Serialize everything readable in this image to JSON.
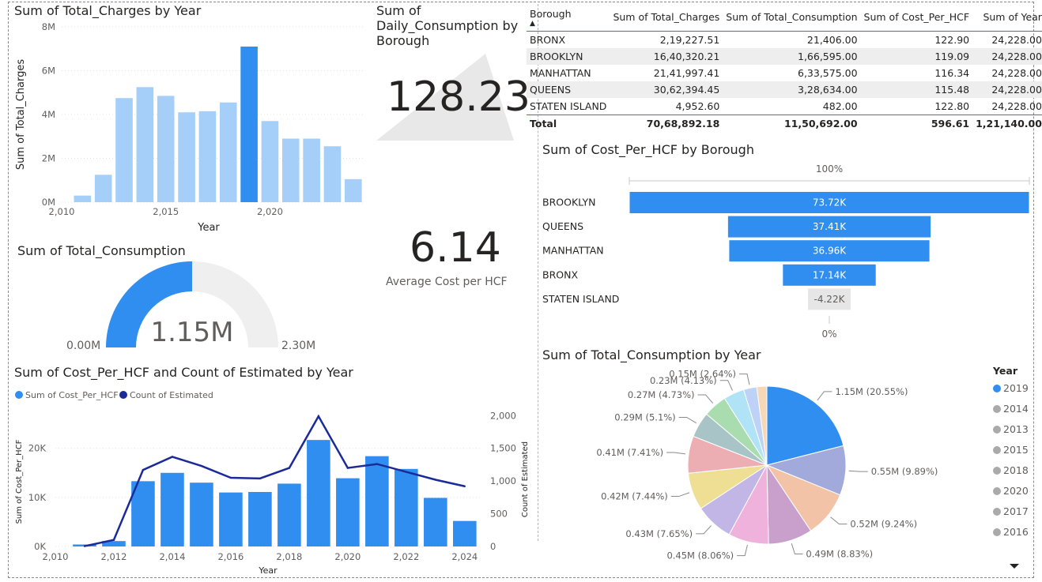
{
  "colors": {
    "accent": "#2f8ef0",
    "light": "#a5cff8",
    "line": "#1b2a99",
    "gaugeBg": "#efefef",
    "funnelNeg": "#e6e6e6"
  },
  "charges_chart": {
    "title": "Sum of Total_Charges by Year",
    "chart_data": {
      "type": "bar",
      "title": "Sum of Total_Charges by Year",
      "xlabel": "Year",
      "ylabel": "Sum of Total_Charges",
      "categories": [
        2011,
        2012,
        2013,
        2014,
        2015,
        2016,
        2017,
        2018,
        2019,
        2020,
        2021,
        2022,
        2023,
        2024
      ],
      "values": [
        0.3,
        1.25,
        4.75,
        5.25,
        4.85,
        4.1,
        4.15,
        4.55,
        7.1,
        3.7,
        2.9,
        2.9,
        2.55,
        1.05
      ],
      "unit": "M",
      "highlight": 2019,
      "ylim": [
        0,
        8
      ],
      "yticks": [
        "0M",
        "2M",
        "4M",
        "6M",
        "8M"
      ],
      "xticks": [
        "2,010",
        "2,015",
        "2,020"
      ]
    }
  },
  "daily_card": {
    "title": "Sum of Daily_Consumption by Borough",
    "title_lines": [
      "Sum of",
      "Daily_Consumption by",
      "Borough"
    ],
    "value": "128.23"
  },
  "avg_card": {
    "value": "6.14",
    "label": "Average Cost per HCF"
  },
  "table": {
    "headers": [
      "Borough",
      "Sum of Total_Charges",
      "Sum of Total_Consumption",
      "Sum of Cost_Per_HCF",
      "Sum of Year"
    ],
    "sort_glyph": "▲",
    "rows": [
      [
        "BRONX",
        "2,19,227.51",
        "21,406.00",
        "122.90",
        "24,228.00"
      ],
      [
        "BROOKLYN",
        "16,40,320.21",
        "1,66,595.00",
        "119.09",
        "24,228.00"
      ],
      [
        "MANHATTAN",
        "21,41,997.41",
        "6,33,575.00",
        "116.34",
        "24,228.00"
      ],
      [
        "QUEENS",
        "30,62,394.45",
        "3,28,634.00",
        "115.48",
        "24,228.00"
      ],
      [
        "STATEN ISLAND",
        "4,952.60",
        "482.00",
        "122.80",
        "24,228.00"
      ]
    ],
    "total": [
      "Total",
      "70,68,892.18",
      "11,50,692.00",
      "596.61",
      "1,21,140.00"
    ]
  },
  "gauge": {
    "title": "Sum of Total_Consumption",
    "value": "1.15M",
    "min": "0.00M",
    "max": "2.30M",
    "fraction": 0.5
  },
  "funnel": {
    "title": "Sum of Cost_Per_HCF by Borough",
    "top_label": "100%",
    "bottom_label": "0%",
    "chart_data": {
      "type": "bar",
      "categories": [
        "BROOKLYN",
        "QUEENS",
        "MANHATTAN",
        "BRONX",
        "STATEN ISLAND"
      ],
      "values": [
        73.72,
        37.41,
        36.96,
        17.14,
        -4.22
      ],
      "labels": [
        "73.72K",
        "37.41K",
        "36.96K",
        "17.14K",
        "-4.22K"
      ],
      "unit": "K"
    }
  },
  "combo": {
    "title": "Sum of Cost_Per_HCF and Count of Estimated by Year",
    "legend": [
      "Sum of Cost_Per_HCF",
      "Count of Estimated"
    ],
    "chart_data": {
      "type": "bar",
      "xlabel": "Year",
      "ylabel": "Sum of Cost_Per_HCF",
      "y2label": "Count of Estimated",
      "categories": [
        2011,
        2012,
        2013,
        2014,
        2015,
        2016,
        2017,
        2018,
        2019,
        2020,
        2021,
        2022,
        2023,
        2024
      ],
      "series": [
        {
          "name": "Sum of Cost_Per_HCF",
          "type": "bar",
          "values": [
            400,
            1100,
            13300,
            15000,
            13000,
            11000,
            11100,
            12800,
            21700,
            13900,
            18400,
            15800,
            9900,
            5200
          ]
        },
        {
          "name": "Count of Estimated",
          "type": "line",
          "values": [
            5,
            100,
            1170,
            1370,
            1230,
            1050,
            1040,
            1200,
            1990,
            1200,
            1260,
            1140,
            1020,
            920
          ]
        }
      ],
      "ylim": [
        0,
        28000
      ],
      "y2lim": [
        0,
        2100
      ],
      "yticks": [
        "0K",
        "10K",
        "20K"
      ],
      "yticks_vals": [
        0,
        10000,
        20000
      ],
      "y2ticks": [
        "0",
        "500",
        "1,000",
        "1,500",
        "2,000"
      ],
      "y2ticks_vals": [
        0,
        500,
        1000,
        1500,
        2000
      ],
      "xticks": [
        "2,010",
        "2,012",
        "2,014",
        "2,016",
        "2,018",
        "2,020",
        "2,022",
        "2,024"
      ],
      "xticks_vals": [
        2010,
        2012,
        2014,
        2016,
        2018,
        2020,
        2022,
        2024
      ]
    }
  },
  "pie": {
    "title": "Sum of Total_Consumption by Year",
    "legend_title": "Year",
    "legend": [
      "2019",
      "2014",
      "2013",
      "2015",
      "2018",
      "2020",
      "2017",
      "2016"
    ],
    "chart_data": {
      "type": "pie",
      "slices": [
        {
          "value": 20.55,
          "label": "1.15M (20.55%)",
          "color": "#2f8ef0"
        },
        {
          "value": 9.89,
          "label": "0.55M (9.89%)",
          "color": "#a2aadb"
        },
        {
          "value": 9.24,
          "label": "0.52M (9.24%)",
          "color": "#f2c3a7"
        },
        {
          "value": 8.83,
          "label": "0.49M (8.83%)",
          "color": "#c9a0cc"
        },
        {
          "value": 8.06,
          "label": "0.45M (8.06%)",
          "color": "#efb2dc"
        },
        {
          "value": 7.65,
          "label": "0.43M (7.65%)",
          "color": "#c2b6e6"
        },
        {
          "value": 7.44,
          "label": "0.42M (7.44%)",
          "color": "#eedf95"
        },
        {
          "value": 7.41,
          "label": "0.41M (7.41%)",
          "color": "#ecaeb3"
        },
        {
          "value": 5.1,
          "label": "0.29M (5.1%)",
          "color": "#a9c4c6"
        },
        {
          "value": 4.73,
          "label": "0.27M (4.73%)",
          "color": "#a9dcae"
        },
        {
          "value": 4.13,
          "label": "0.23M (4.13%)",
          "color": "#b0e3f6"
        },
        {
          "value": 2.64,
          "label": "0.15M (2.64%)",
          "color": "#bed1f7"
        },
        {
          "value": 2.0,
          "label": "",
          "color": "#f6d8b6"
        }
      ]
    }
  }
}
